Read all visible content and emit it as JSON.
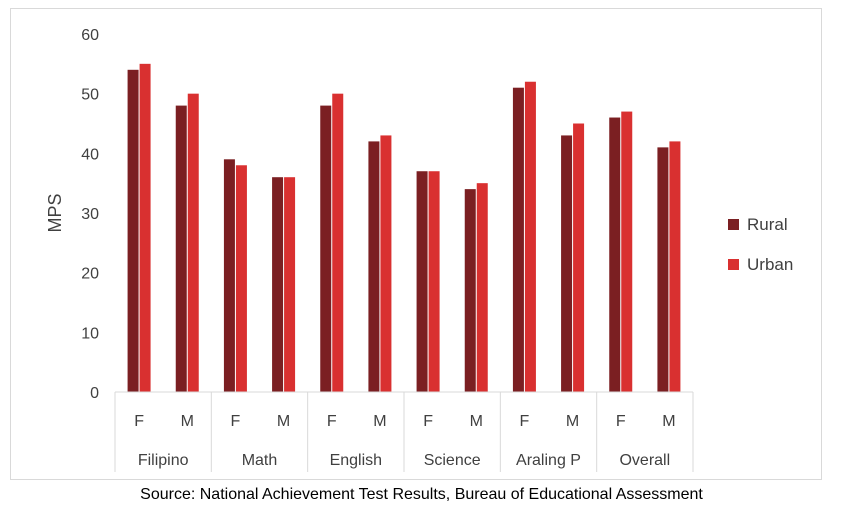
{
  "chart_data": {
    "type": "bar",
    "ylabel": "MPS",
    "ylim": [
      0,
      60
    ],
    "yticks": [
      0,
      10,
      20,
      30,
      40,
      50,
      60
    ],
    "grid": false,
    "legend_position": "right",
    "groups": [
      {
        "label": "Filipino",
        "subcategories": [
          "F",
          "M"
        ]
      },
      {
        "label": "Math",
        "subcategories": [
          "F",
          "M"
        ]
      },
      {
        "label": "English",
        "subcategories": [
          "F",
          "M"
        ]
      },
      {
        "label": "Science",
        "subcategories": [
          "F",
          "M"
        ]
      },
      {
        "label": "Araling P",
        "subcategories": [
          "F",
          "M"
        ]
      },
      {
        "label": "Overall",
        "subcategories": [
          "F",
          "M"
        ]
      }
    ],
    "series": [
      {
        "name": "Rural",
        "color": "#7b1f22",
        "values": [
          54,
          48,
          39,
          36,
          48,
          42,
          37,
          34,
          51,
          43,
          46,
          41
        ]
      },
      {
        "name": "Urban",
        "color": "#d93030",
        "values": [
          55,
          50,
          38,
          36,
          50,
          43,
          37,
          35,
          52,
          45,
          47,
          42
        ]
      }
    ]
  },
  "source": "Source: National Achievement Test Results, Bureau of Educational Assessment"
}
